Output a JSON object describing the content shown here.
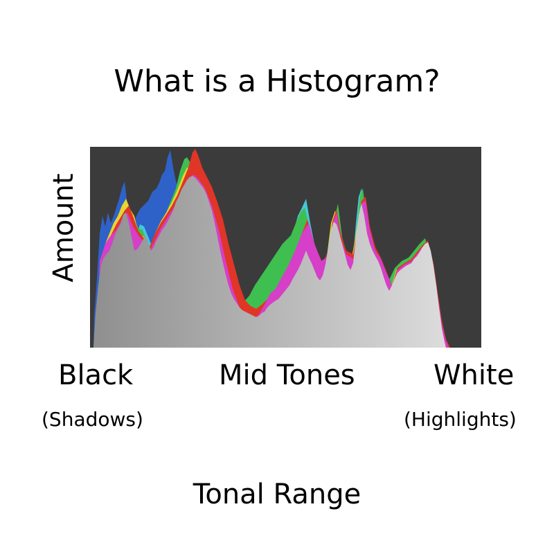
{
  "diagram": {
    "title": "What is a Histogram?",
    "y_axis_label": "Amount",
    "x_axis_label": "Tonal Range",
    "tonal_zones": {
      "black": {
        "label": "Black",
        "sub_label": "(Shadows)"
      },
      "mid": {
        "label": "Mid Tones"
      },
      "white": {
        "label": "White",
        "sub_label": "(Highlights)"
      }
    }
  },
  "colors": {
    "background": "#ffffff",
    "plot_background": "#3b3b3b",
    "luminance_fill_dark": "#8f8f8f",
    "luminance_fill_light": "#dcdcdc",
    "channel_blue": "#2f62c9",
    "channel_cyan": "#45c8d8",
    "channel_green": "#3fbf4f",
    "channel_yellow": "#e6d62e",
    "channel_red": "#e03527",
    "channel_magenta": "#d63fc8"
  }
}
